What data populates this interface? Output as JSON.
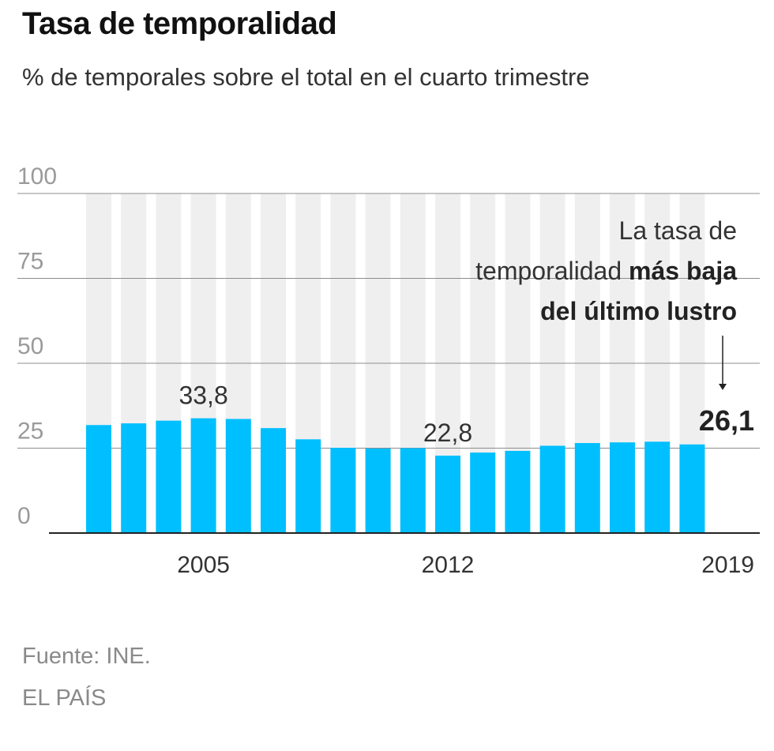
{
  "title": "Tasa de temporalidad",
  "subtitle": "% de temporales sobre el total en el cuarto trimestre",
  "chart_data": {
    "type": "bar",
    "categories": [
      "2002",
      "2003",
      "2004",
      "2005",
      "2006",
      "2007",
      "2008",
      "2009",
      "2010",
      "2011",
      "2012",
      "2013",
      "2014",
      "2015",
      "2016",
      "2017",
      "2018",
      "2019"
    ],
    "values": [
      31.8,
      32.3,
      33.1,
      33.8,
      33.6,
      30.9,
      27.6,
      25.1,
      24.9,
      25.0,
      22.8,
      23.7,
      24.2,
      25.7,
      26.5,
      26.7,
      26.9,
      26.1
    ],
    "ylim": [
      0,
      100
    ],
    "yticks": [
      "0",
      "25",
      "50",
      "75",
      "100"
    ],
    "xtick_labels": [
      "2005",
      "2012",
      "2019"
    ],
    "value_labels": {
      "2005": "33,8",
      "2012": "22,8",
      "2019": "26,1"
    },
    "annotation": {
      "line1": "La tasa de",
      "line2_normal": "temporalidad ",
      "line2_bold": "más baja",
      "line3_bold": "del último lustro"
    },
    "colors": {
      "bar": "#00bfff",
      "band": "#efefef",
      "grid": "#8c8c8c",
      "axis": "#222222"
    },
    "grid": true
  },
  "footer": {
    "source": "Fuente: INE.",
    "brand": "EL PAÍS"
  }
}
